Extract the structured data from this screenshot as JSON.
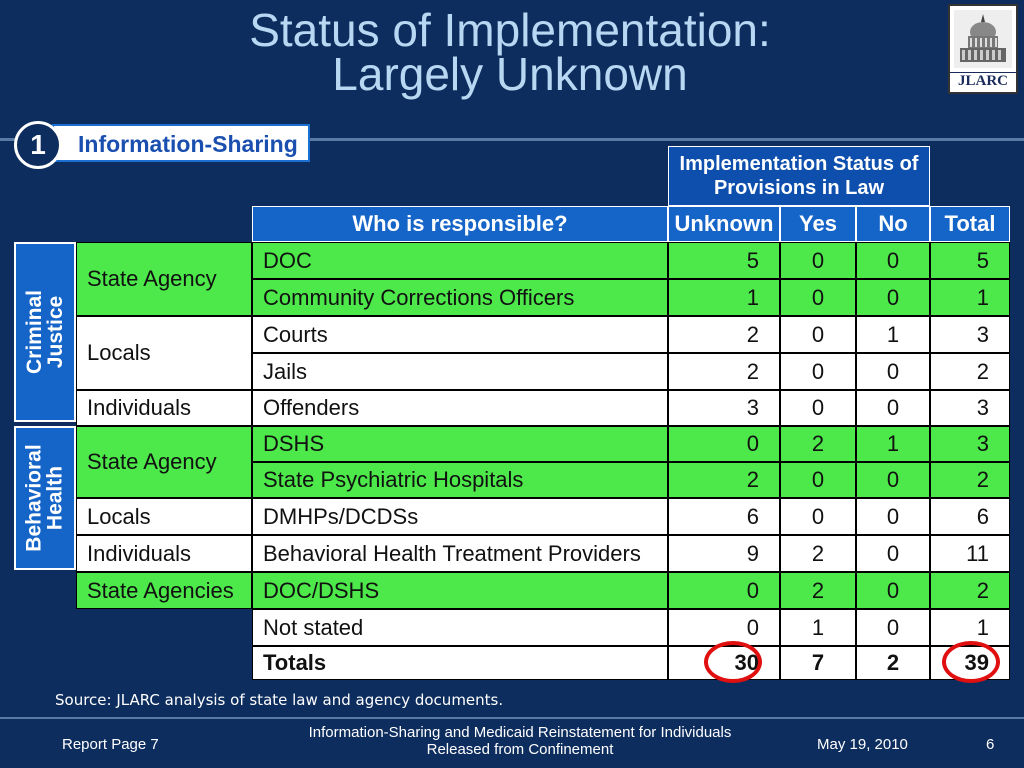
{
  "slide": {
    "title_line1": "Status of Implementation:",
    "title_line2": "Largely Unknown",
    "logo_text": "JLARC",
    "badge_number": "1",
    "badge_label": "Information-Sharing"
  },
  "table": {
    "status_header": "Implementation Status of Provisions in Law",
    "col_headers": {
      "who": "Who is responsible?",
      "unknown": "Unknown",
      "yes": "Yes",
      "no": "No",
      "total": "Total"
    },
    "side_groups": {
      "criminal_justice": "Criminal\nJustice",
      "behavioral_health": "Behavioral\nHealth"
    },
    "categories": [
      "State Agency",
      "Locals",
      "Individuals",
      "State Agency",
      "Locals",
      "Individuals",
      "State Agencies"
    ],
    "rows": [
      {
        "who": "DOC",
        "unknown": "5",
        "yes": "0",
        "no": "0",
        "total": "5"
      },
      {
        "who": "Community Corrections Officers",
        "unknown": "1",
        "yes": "0",
        "no": "0",
        "total": "1"
      },
      {
        "who": "Courts",
        "unknown": "2",
        "yes": "0",
        "no": "1",
        "total": "3"
      },
      {
        "who": "Jails",
        "unknown": "2",
        "yes": "0",
        "no": "0",
        "total": "2"
      },
      {
        "who": "Offenders",
        "unknown": "3",
        "yes": "0",
        "no": "0",
        "total": "3"
      },
      {
        "who": "DSHS",
        "unknown": "0",
        "yes": "2",
        "no": "1",
        "total": "3"
      },
      {
        "who": "State Psychiatric Hospitals",
        "unknown": "2",
        "yes": "0",
        "no": "0",
        "total": "2"
      },
      {
        "who": "DMHPs/DCDSs",
        "unknown": "6",
        "yes": "0",
        "no": "0",
        "total": "6"
      },
      {
        "who": "Behavioral Health Treatment Providers",
        "unknown": "9",
        "yes": "2",
        "no": "0",
        "total": "11"
      },
      {
        "who": "DOC/DSHS",
        "unknown": "0",
        "yes": "2",
        "no": "0",
        "total": "2"
      },
      {
        "who": "Not stated",
        "unknown": "0",
        "yes": "1",
        "no": "0",
        "total": "1"
      }
    ],
    "totals": {
      "label": "Totals",
      "unknown": "30",
      "yes": "7",
      "no": "2",
      "total": "39"
    },
    "highlight_color": "#e01010",
    "green_color": "#4de84a",
    "header_blue": "#1565c9"
  },
  "source": "Source: JLARC analysis of state law and agency documents.",
  "footer": {
    "left": "Report Page 7",
    "center": "Information-Sharing and Medicaid Reinstatement for Individuals Released from Confinement",
    "date": "May 19, 2010",
    "page": "6"
  }
}
